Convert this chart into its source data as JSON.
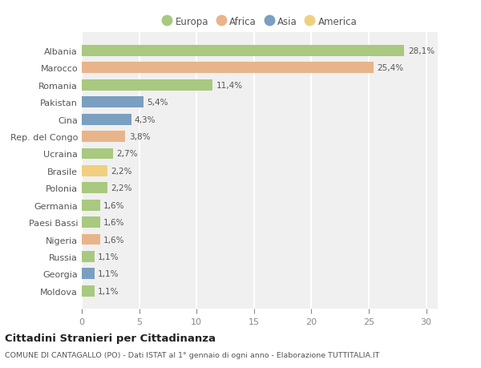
{
  "countries": [
    "Albania",
    "Marocco",
    "Romania",
    "Pakistan",
    "Cina",
    "Rep. del Congo",
    "Ucraina",
    "Brasile",
    "Polonia",
    "Germania",
    "Paesi Bassi",
    "Nigeria",
    "Russia",
    "Georgia",
    "Moldova"
  ],
  "values": [
    28.1,
    25.4,
    11.4,
    5.4,
    4.3,
    3.8,
    2.7,
    2.2,
    2.2,
    1.6,
    1.6,
    1.6,
    1.1,
    1.1,
    1.1
  ],
  "labels": [
    "28,1%",
    "25,4%",
    "11,4%",
    "5,4%",
    "4,3%",
    "3,8%",
    "2,7%",
    "2,2%",
    "2,2%",
    "1,6%",
    "1,6%",
    "1,6%",
    "1,1%",
    "1,1%",
    "1,1%"
  ],
  "colors": [
    "#a8c97f",
    "#e8b48a",
    "#a8c97f",
    "#7a9fc0",
    "#7a9fc0",
    "#e8b48a",
    "#a8c97f",
    "#f0d080",
    "#a8c97f",
    "#a8c97f",
    "#a8c97f",
    "#e8b48a",
    "#a8c97f",
    "#7a9fc0",
    "#a8c97f"
  ],
  "continent_labels": [
    "Europa",
    "Africa",
    "Asia",
    "America"
  ],
  "continent_colors": [
    "#a8c97f",
    "#e8b48a",
    "#7a9fc0",
    "#f0d080"
  ],
  "title": "Cittadini Stranieri per Cittadinanza",
  "subtitle": "COMUNE DI CANTAGALLO (PO) - Dati ISTAT al 1° gennaio di ogni anno - Elaborazione TUTTITALIA.IT",
  "xlim": [
    0,
    31
  ],
  "xticks": [
    0,
    5,
    10,
    15,
    20,
    25,
    30
  ],
  "bg_color": "#ffffff",
  "plot_bg_color": "#f0f0f0",
  "grid_color": "#ffffff"
}
